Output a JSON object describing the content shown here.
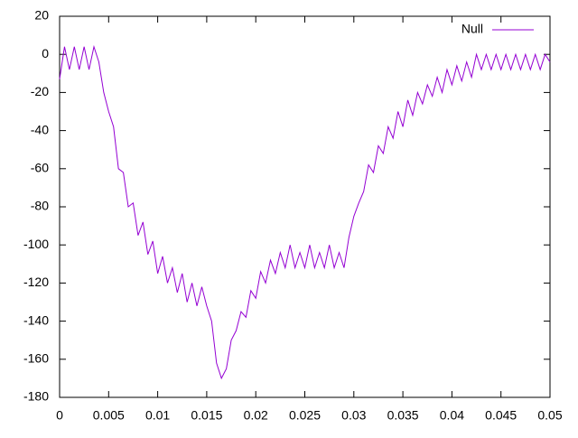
{
  "chart_data": {
    "type": "line",
    "x": [
      0,
      0.0005,
      0.001,
      0.0015,
      0.002,
      0.0025,
      0.003,
      0.0035,
      0.004,
      0.0045,
      0.005,
      0.0055,
      0.006,
      0.0065,
      0.007,
      0.0075,
      0.008,
      0.0085,
      0.009,
      0.0095,
      0.01,
      0.0105,
      0.011,
      0.0115,
      0.012,
      0.0125,
      0.013,
      0.0135,
      0.014,
      0.0145,
      0.015,
      0.0155,
      0.016,
      0.0165,
      0.017,
      0.0175,
      0.018,
      0.0185,
      0.019,
      0.0195,
      0.02,
      0.0205,
      0.021,
      0.0215,
      0.022,
      0.0225,
      0.023,
      0.0235,
      0.024,
      0.0245,
      0.025,
      0.0255,
      0.026,
      0.0265,
      0.027,
      0.0275,
      0.028,
      0.0285,
      0.029,
      0.0295,
      0.03,
      0.0305,
      0.031,
      0.0315,
      0.032,
      0.0325,
      0.033,
      0.0335,
      0.034,
      0.0345,
      0.035,
      0.0355,
      0.036,
      0.0365,
      0.037,
      0.0375,
      0.038,
      0.0385,
      0.039,
      0.0395,
      0.04,
      0.0405,
      0.041,
      0.0415,
      0.042,
      0.0425,
      0.043,
      0.0435,
      0.044,
      0.0445,
      0.045,
      0.0455,
      0.046,
      0.0465,
      0.047,
      0.0475,
      0.048,
      0.0485,
      0.049,
      0.0495,
      0.05
    ],
    "series": [
      {
        "name": "Null",
        "color": "#9400d3",
        "values": [
          -13,
          4,
          -8,
          4,
          -8,
          4,
          -8,
          4,
          -4,
          -20,
          -30,
          -38,
          -60,
          -62,
          -80,
          -78,
          -95,
          -88,
          -105,
          -98,
          -115,
          -106,
          -120,
          -112,
          -125,
          -115,
          -130,
          -120,
          -132,
          -122,
          -132,
          -140,
          -162,
          -170,
          -165,
          -150,
          -145,
          -135,
          -138,
          -124,
          -128,
          -114,
          -120,
          -108,
          -115,
          -104,
          -112,
          -100,
          -112,
          -104,
          -112,
          -100,
          -112,
          -104,
          -112,
          -100,
          -112,
          -104,
          -112,
          -96,
          -85,
          -78,
          -72,
          -58,
          -62,
          -48,
          -52,
          -38,
          -44,
          -30,
          -38,
          -24,
          -32,
          -20,
          -26,
          -16,
          -22,
          -12,
          -20,
          -8,
          -16,
          -6,
          -14,
          -4,
          -12,
          0,
          -8,
          0,
          -8,
          0,
          -8,
          0,
          -8,
          0,
          -8,
          0,
          -8,
          0,
          -8,
          0,
          -4
        ]
      }
    ],
    "xlim": [
      0,
      0.05
    ],
    "xticks": [
      0,
      0.005,
      0.01,
      0.015,
      0.02,
      0.025,
      0.03,
      0.035,
      0.04,
      0.045,
      0.05
    ],
    "ylim": [
      -180,
      20
    ],
    "yticks": [
      -180,
      -160,
      -140,
      -120,
      -100,
      -80,
      -60,
      -40,
      -20,
      0,
      20
    ],
    "grid": false,
    "legend": "top-right"
  }
}
